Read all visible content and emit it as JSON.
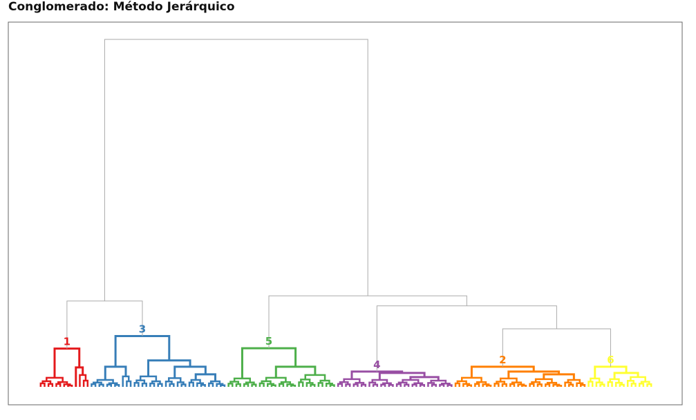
{
  "chart_data": {
    "type": "dendrogram",
    "title": "Conglomerado: Método Jerárquico",
    "xlabel": "",
    "ylabel": "",
    "ylim": [
      0,
      100
    ],
    "link_color": "#aaaaaa",
    "clusters": [
      {
        "label": "1",
        "color": "#e41a1c",
        "tree": {
          "h": 11,
          "c": [
            {
              "h": 2.6,
              "n": 9
            },
            {
              "h": 5.6,
              "c": [
                {
                  "n": 1
                },
                {
                  "h": 3.4,
                  "n": 3
                }
              ]
            }
          ]
        }
      },
      {
        "label": "3",
        "color": "#377eb8",
        "tree": {
          "h": 14.6,
          "c": [
            {
              "h": 5.8,
              "c": [
                {
                  "h": 2,
                  "n": 8
                },
                {
                  "h": 3,
                  "n": 3
                }
              ]
            },
            {
              "h": 7.6,
              "c": [
                {
                  "h": 3,
                  "n": 8
                },
                {
                  "h": 5.8,
                  "c": [
                    {
                      "h": 2.5,
                      "n": 6
                    },
                    {
                      "h": 3.6,
                      "c": [
                        {
                          "h": 2,
                          "n": 5
                        },
                        {
                          "h": 1.6,
                          "n": 5
                        }
                      ]
                    }
                  ]
                }
              ]
            }
          ]
        }
      },
      {
        "label": "5",
        "color": "#4daf4a",
        "tree": {
          "h": 11.1,
          "c": [
            {
              "h": 2.4,
              "n": 8
            },
            {
              "h": 5.8,
              "c": [
                {
                  "h": 2.6,
                  "n": 10
                },
                {
                  "h": 3.4,
                  "n": 10
                }
              ]
            }
          ]
        }
      },
      {
        "label": "4",
        "color": "#984ea3",
        "tree": {
          "h": 4.4,
          "c": [
            {
              "h": 2.2,
              "n": 8
            },
            {
              "h": 4,
              "c": [
                {
                  "h": 2,
                  "n": 7
                },
                {
                  "h": 2.8,
                  "c": [
                    {
                      "h": 2,
                      "n": 8
                    },
                    {
                      "h": 1.8,
                      "n": 7
                    }
                  ]
                }
              ]
            }
          ]
        }
      },
      {
        "label": "2",
        "color": "#ff7f00",
        "tree": {
          "h": 5.8,
          "c": [
            {
              "h": 2.6,
              "n": 10
            },
            {
              "h": 4.4,
              "c": [
                {
                  "h": 2.4,
                  "n": 9
                },
                {
                  "h": 3.6,
                  "c": [
                    {
                      "h": 2.2,
                      "n": 9
                    },
                    {
                      "h": 2,
                      "n": 6
                    }
                  ]
                }
              ]
            }
          ]
        }
      },
      {
        "label": "6",
        "color": "#ffff33",
        "tree": {
          "h": 5.8,
          "c": [
            {
              "h": 2.4,
              "n": 5
            },
            {
              "h": 4,
              "c": [
                {
                  "h": 2.2,
                  "n": 5
                },
                {
                  "h": 2.8,
                  "n": 7
                }
              ]
            }
          ]
        }
      }
    ],
    "linkage": {
      "h": 100,
      "c": [
        {
          "h": 24.7,
          "c": [
            {
              "cluster": 0
            },
            {
              "cluster": 1
            }
          ]
        },
        {
          "h": 26.2,
          "c": [
            {
              "cluster": 2
            },
            {
              "h": 23.3,
              "c": [
                {
                  "cluster": 3
                },
                {
                  "h": 16.7,
                  "c": [
                    {
                      "cluster": 4
                    },
                    {
                      "cluster": 5
                    }
                  ]
                }
              ]
            }
          ]
        }
      ]
    }
  }
}
